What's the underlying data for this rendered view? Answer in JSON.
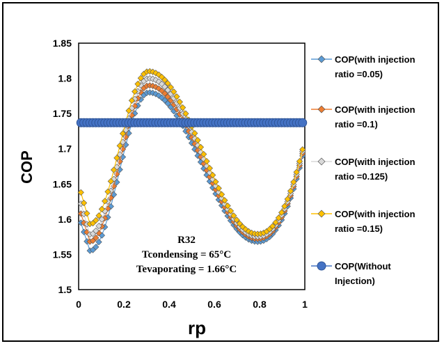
{
  "chart_data": {
    "type": "scatter",
    "title": "",
    "xlabel": "rp",
    "ylabel": "COP",
    "xlim": [
      0,
      1
    ],
    "ylim": [
      1.5,
      1.85
    ],
    "x_ticks": [
      "0",
      "0.2",
      "0.4",
      "0.6",
      "0.8",
      "1"
    ],
    "y_ticks": [
      "1.5",
      "1.55",
      "1.6",
      "1.65",
      "1.7",
      "1.75",
      "1.8",
      "1.85"
    ],
    "grid": false,
    "legend_position": "right",
    "annotation": [
      "R32",
      "Tcondensing = 65°C",
      "Tevaporating = 1.66°C"
    ],
    "series": [
      {
        "name": "COP(with injection ratio =0.05)",
        "legend_lines": [
          "COP(with injection",
          "ratio =0.05)"
        ],
        "marker": "diamond",
        "color": "#5b9bd5",
        "curve": {
          "x0": 0.01,
          "y0": 1.595,
          "a": 1.555,
          "xa": 0.05,
          "p": 1.78,
          "xp": 0.31,
          "t": 1.568,
          "xt": 0.79,
          "ye": 1.69
        }
      },
      {
        "name": "COP(with injection ratio =0.1)",
        "legend_lines": [
          "COP(with injection",
          "ratio =0.1)"
        ],
        "marker": "diamond",
        "color": "#ed7d31",
        "curve": {
          "x0": 0.01,
          "y0": 1.608,
          "a": 1.568,
          "xa": 0.05,
          "p": 1.79,
          "xp": 0.31,
          "t": 1.572,
          "xt": 0.79,
          "ye": 1.693
        }
      },
      {
        "name": "COP(with injection ratio =0.125)",
        "legend_lines": [
          "COP(with injection",
          "ratio =0.125)"
        ],
        "marker": "diamond",
        "color": "#d9d9d9",
        "curve": {
          "x0": 0.01,
          "y0": 1.622,
          "a": 1.578,
          "xa": 0.05,
          "p": 1.8,
          "xp": 0.31,
          "t": 1.575,
          "xt": 0.79,
          "ye": 1.696
        }
      },
      {
        "name": "COP(with injection ratio =0.15)",
        "legend_lines": [
          "COP(with injection",
          "ratio =0.15)"
        ],
        "marker": "diamond",
        "color": "#ffc000",
        "curve": {
          "x0": 0.01,
          "y0": 1.638,
          "a": 1.593,
          "xa": 0.05,
          "p": 1.81,
          "xp": 0.31,
          "t": 1.579,
          "xt": 0.79,
          "ye": 1.699
        }
      },
      {
        "name": "COP(Without Injection)",
        "legend_lines": [
          "COP(Without",
          "Injection)"
        ],
        "marker": "circle",
        "color": "#4472c4",
        "constant": 1.737
      }
    ]
  }
}
